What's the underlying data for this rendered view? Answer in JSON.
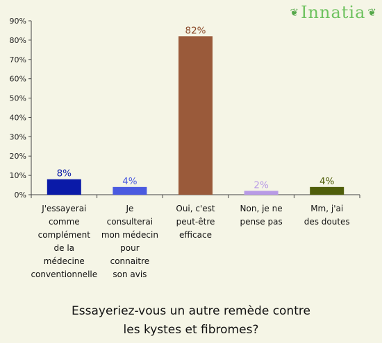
{
  "logo": {
    "text": "Innatia",
    "icon": "leaf-swirl-icon"
  },
  "caption": {
    "line1": "Essayeriez-vous un autre remède contre",
    "line2": "les kystes et fibromes?"
  },
  "chart_data": {
    "type": "bar",
    "categories": [
      [
        "J'essayerai",
        "comme",
        "complément",
        "de la",
        "médecine",
        "conventionnelle"
      ],
      [
        "Je",
        "consulterai",
        "mon médecin",
        "pour",
        "connaitre",
        "son avis"
      ],
      [
        "Oui, c'est",
        "peut-être",
        "efficace"
      ],
      [
        "Non, je ne",
        "pense pas"
      ],
      [
        "Mm, j'ai",
        "des doutes"
      ]
    ],
    "values": [
      8,
      4,
      82,
      2,
      4
    ],
    "data_labels": [
      "8%",
      "4%",
      "82%",
      "2%",
      "4%"
    ],
    "colors": [
      "#0a1aa8",
      "#4a5ae0",
      "#9a5a3a",
      "#b89ae6",
      "#4f5e0a"
    ],
    "label_colors": [
      "#0a1aa8",
      "#4a5ae0",
      "#8a4a2a",
      "#b89ae6",
      "#4f5e0a"
    ],
    "ylim": [
      0,
      90
    ],
    "yticks": [
      0,
      10,
      20,
      30,
      40,
      50,
      60,
      70,
      80,
      90
    ],
    "ytick_suffix": "%",
    "grid": false
  }
}
